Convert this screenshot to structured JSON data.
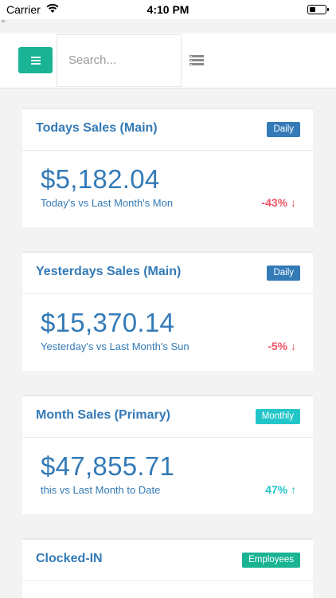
{
  "status_bar": {
    "carrier": "Carrier",
    "time": "4:10 PM"
  },
  "stray_mark": "\"",
  "search": {
    "placeholder": "Search..."
  },
  "colors": {
    "teal_green": "#1ab394",
    "blue": "#337ab7",
    "cyan": "#23c6c8",
    "red": "#ed5565"
  },
  "cards": [
    {
      "title": "Todays Sales (Main)",
      "badge": "Daily",
      "amount": "$5,182.04",
      "comparison": "Today's vs Last Month's Mon",
      "change": "-43% ↓"
    },
    {
      "title": "Yesterdays Sales (Main)",
      "badge": "Daily",
      "amount": "$15,370.14",
      "comparison": "Yesterday's vs Last Month's Sun",
      "change": "-5% ↓"
    },
    {
      "title": "Month Sales (Primary)",
      "badge": "Monthly",
      "amount": "$47,855.71",
      "comparison": "this vs Last Month to Date",
      "change": "47% ↑"
    },
    {
      "title": "Clocked-IN",
      "badge": "Employees"
    }
  ]
}
